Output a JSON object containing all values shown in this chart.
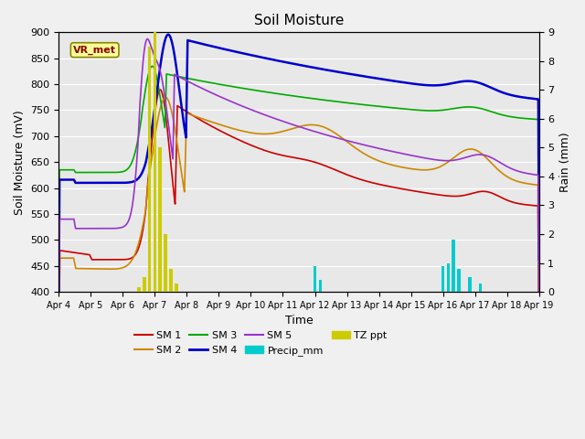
{
  "title": "Soil Moisture",
  "xlabel": "Time",
  "ylabel_left": "Soil Moisture (mV)",
  "ylabel_right": "Rain (mm)",
  "ylim_left": [
    400,
    900
  ],
  "ylim_right": [
    0.0,
    9.0
  ],
  "yticks_left": [
    400,
    450,
    500,
    550,
    600,
    650,
    700,
    750,
    800,
    850,
    900
  ],
  "yticks_right": [
    0.0,
    1.0,
    2.0,
    3.0,
    4.0,
    5.0,
    6.0,
    7.0,
    8.0,
    9.0
  ],
  "bg_color": "#e8e8e8",
  "fig_color": "#f0f0f0",
  "annotation_text": "VR_met",
  "annotation_bg": "#ffff99",
  "annotation_fg": "#8b0000",
  "colors": {
    "SM1": "#cc0000",
    "SM2": "#cc8800",
    "SM3": "#00aa00",
    "SM4": "#0000cc",
    "SM5": "#9933cc",
    "Precip": "#00cccc",
    "TZ": "#cccc00"
  },
  "total_hours": 360,
  "n_points": 1500,
  "bar_hours_tz": [
    60,
    64,
    68,
    72,
    76,
    80,
    84,
    88
  ],
  "bar_vals_tz": [
    0.15,
    0.5,
    8.5,
    9.0,
    5.0,
    2.0,
    0.8,
    0.3
  ],
  "bar_hours_p": [
    192,
    196,
    288,
    292,
    296,
    300,
    308,
    316
  ],
  "bar_vals_p": [
    0.9,
    0.4,
    0.9,
    1.0,
    1.8,
    0.8,
    0.5,
    0.3
  ],
  "bar_width": 2.5
}
